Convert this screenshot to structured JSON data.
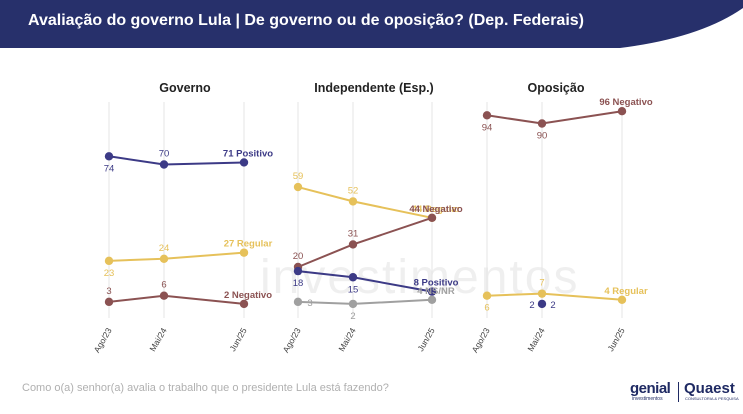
{
  "header": {
    "title": "Avaliação do governo Lula | De governo ou de oposição? (Dep. Federais)",
    "background": "#27306b"
  },
  "footer": {
    "question": "Como o(a) senhor(a) avalia o trabalho que o presidente Lula está fazendo?"
  },
  "logos": {
    "genial": "genial",
    "genial_sub": "investimentos",
    "quaest": "Quaest",
    "quaest_sub": "CONSULTORIA & PESQUISA"
  },
  "colors": {
    "positivo": "#3c3a86",
    "regular": "#e6c15a",
    "negativo": "#8b5252",
    "nsnr": "#a0a0a0"
  },
  "chart_data": [
    {
      "type": "line",
      "title": "Governo",
      "categories": [
        "Ago/23",
        "Mai/24",
        "Jun/25"
      ],
      "ylim": [
        0,
        100
      ],
      "series": [
        {
          "name": "Positivo",
          "color": "#3c3a86",
          "values": [
            74,
            70,
            71
          ],
          "end_label": "71 Positivo"
        },
        {
          "name": "Regular",
          "color": "#e6c15a",
          "values": [
            23,
            24,
            27
          ],
          "end_label": "27 Regular"
        },
        {
          "name": "Negativo",
          "color": "#8b5252",
          "values": [
            3,
            6,
            2
          ],
          "end_label": "2 Negativo"
        }
      ]
    },
    {
      "type": "line",
      "title": "Independente (Esp.)",
      "categories": [
        "Ago/23",
        "Mai/24",
        "Jun/25"
      ],
      "ylim": [
        0,
        100
      ],
      "series": [
        {
          "name": "Regular",
          "color": "#e6c15a",
          "values": [
            59,
            52,
            44
          ],
          "end_label": "44 Regular"
        },
        {
          "name": "Negativo",
          "color": "#8b5252",
          "values": [
            20,
            31,
            44
          ],
          "end_label": "44 Negativo"
        },
        {
          "name": "Positivo",
          "color": "#3c3a86",
          "values": [
            18,
            15,
            8
          ],
          "end_label": "8 Positivo"
        },
        {
          "name": "NS/NR",
          "color": "#a0a0a0",
          "values": [
            3,
            2,
            4
          ],
          "end_label": "4 NS/NR"
        }
      ]
    },
    {
      "type": "line",
      "title": "Oposição",
      "categories": [
        "Ago/23",
        "Mai/24",
        "Jun/25"
      ],
      "ylim": [
        0,
        100
      ],
      "series": [
        {
          "name": "Negativo",
          "color": "#8b5252",
          "values": [
            94,
            90,
            96
          ],
          "end_label": "96 Negativo"
        },
        {
          "name": "Regular",
          "color": "#e6c15a",
          "values": [
            6,
            7,
            4
          ],
          "end_label": "4 Regular"
        },
        {
          "name": "Positivo",
          "color": "#3c3a86",
          "values": [
            null,
            2,
            null
          ],
          "end_label": "",
          "point_labels": [
            "",
            "2",
            ""
          ]
        }
      ]
    }
  ]
}
